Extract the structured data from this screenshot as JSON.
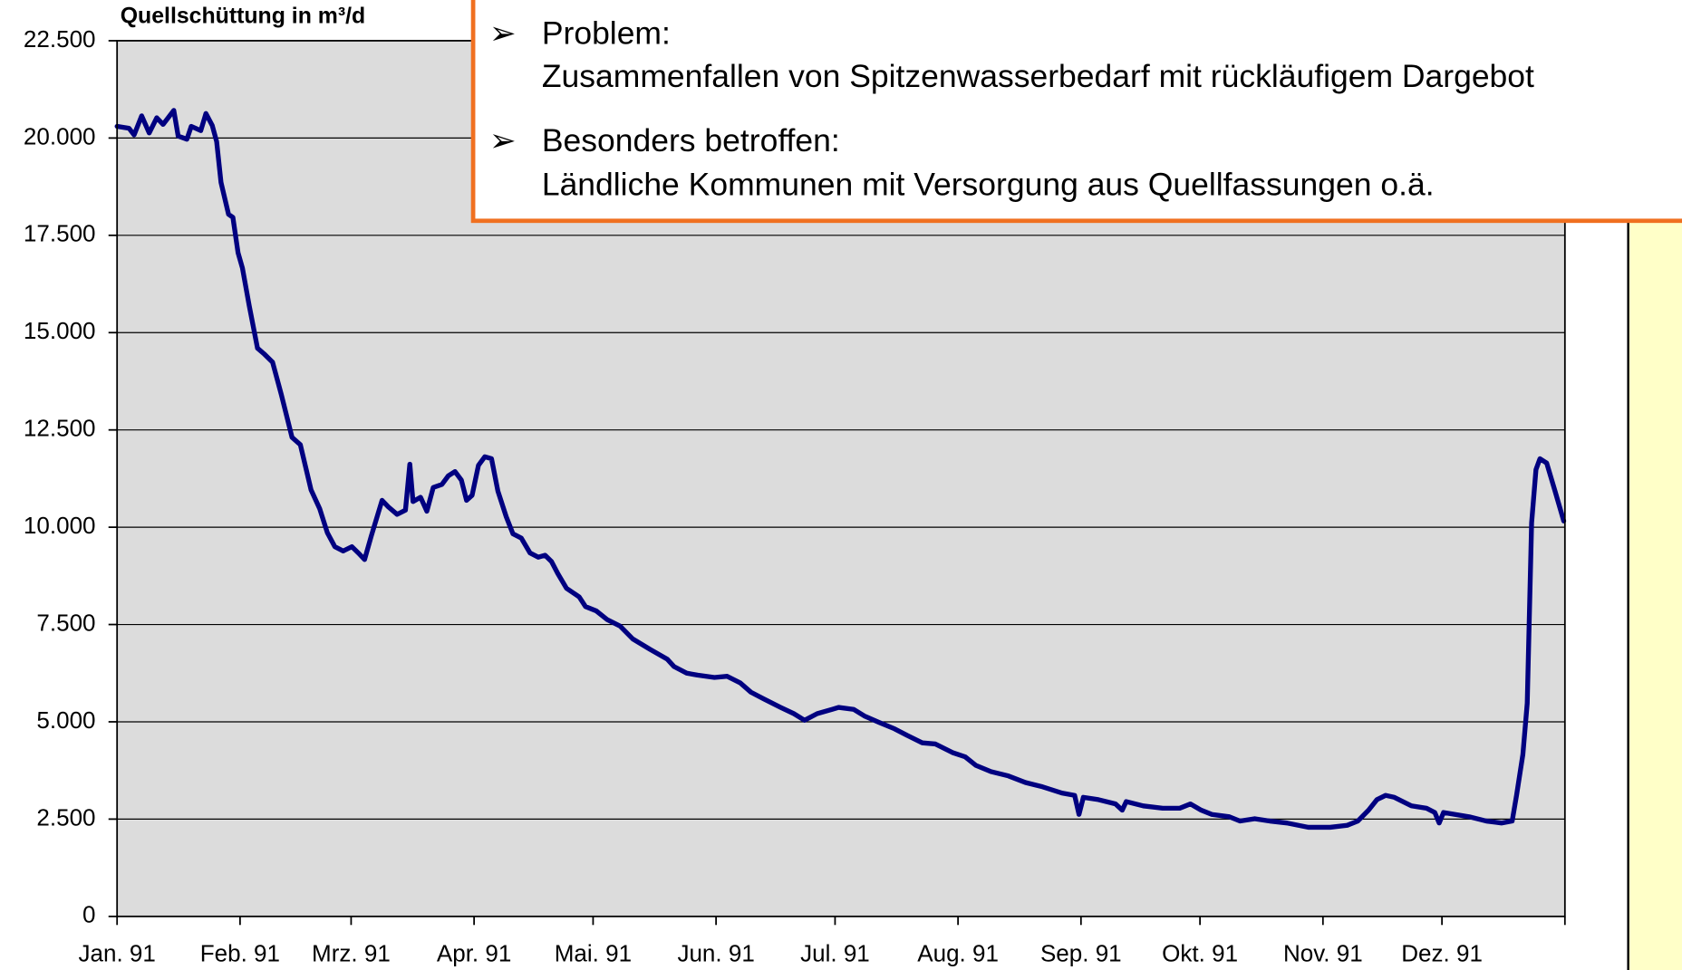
{
  "chart_data": {
    "type": "line",
    "y_label": "Quellschüttung in m³/d",
    "color": "#000080",
    "xlim": [
      0,
      365
    ],
    "xticks": [
      {
        "value": 0,
        "label": "Jan. 91"
      },
      {
        "value": 31,
        "label": "Feb. 91"
      },
      {
        "value": 59,
        "label": "Mrz. 91"
      },
      {
        "value": 90,
        "label": "Apr. 91"
      },
      {
        "value": 120,
        "label": "Mai. 91"
      },
      {
        "value": 151,
        "label": "Jun. 91"
      },
      {
        "value": 181,
        "label": "Jul. 91"
      },
      {
        "value": 212,
        "label": "Aug. 91"
      },
      {
        "value": 243,
        "label": "Sep. 91"
      },
      {
        "value": 273,
        "label": "Okt. 91"
      },
      {
        "value": 304,
        "label": "Nov. 91"
      },
      {
        "value": 334,
        "label": "Dez. 91"
      }
    ],
    "ylim": [
      0,
      22500
    ],
    "yticks": [
      0,
      {
        "value": 2500,
        "label": "2.500"
      },
      {
        "value": 5000,
        "label": "5.000"
      },
      {
        "value": 7500,
        "label": "7.500"
      },
      {
        "value": 10000,
        "label": "10.000"
      },
      {
        "value": 12500,
        "label": "12.500"
      },
      {
        "value": 15000,
        "label": "15.000"
      },
      {
        "value": 17500,
        "label": "17.500"
      },
      {
        "value": 20000,
        "label": "20.000"
      },
      {
        "value": 22500,
        "label": "22.500"
      }
    ],
    "grid": true,
    "x": [
      0,
      3,
      4.3,
      6.2,
      8.1,
      10,
      11.6,
      14.3,
      15.4,
      17.6,
      18.7,
      21.1,
      22.4,
      24,
      25.1,
      26.2,
      28.1,
      29.2,
      30.5,
      31.6,
      33.3,
      35.4,
      37,
      39.2,
      41.4,
      44.1,
      46.2,
      48.9,
      51.1,
      53,
      54.9,
      57,
      59.2,
      60.8,
      62.4,
      64.1,
      66.8,
      68.4,
      70.6,
      72.7,
      73.8,
      74.6,
      76.5,
      78.1,
      79.7,
      81.9,
      83.5,
      85.2,
      86.8,
      88.1,
      89.5,
      91.1,
      92.7,
      94.4,
      96,
      98.1,
      99.8,
      101.9,
      104.1,
      106.2,
      107.9,
      109.5,
      111.1,
      113.3,
      116.5,
      118.1,
      120.8,
      123.5,
      126.8,
      130,
      134.4,
      138.7,
      140.4,
      143.6,
      146.3,
      150.6,
      153.8,
      157.1,
      159.8,
      163,
      167.3,
      170.6,
      173.3,
      176.5,
      180.3,
      181.9,
      185.7,
      188.4,
      192.2,
      196,
      199.2,
      203,
      206.3,
      210.6,
      213.8,
      216.5,
      220.3,
      224.7,
      229,
      233.3,
      238.2,
      241.4,
      242.5,
      243.6,
      247.4,
      251.7,
      253.4,
      254.4,
      258.7,
      263.6,
      267.9,
      270.6,
      273.3,
      276,
      280.4,
      283.1,
      286.8,
      290.6,
      294.9,
      300.3,
      305.8,
      310.1,
      312.8,
      315.5,
      317.6,
      319.8,
      322,
      326.3,
      330.1,
      332.2,
      333.3,
      334.4,
      340.9,
      345.2,
      349,
      351.7,
      352.8,
      354.4,
      355.5,
      356.6,
      357.7,
      358.7,
      360.4,
      362.5,
      364.7
    ],
    "values": [
      20300,
      20250,
      20080,
      20570,
      20130,
      20520,
      20350,
      20710,
      20050,
      19970,
      20300,
      20190,
      20630,
      20320,
      19910,
      18860,
      18040,
      17960,
      17050,
      16660,
      15700,
      14600,
      14460,
      14240,
      13410,
      12310,
      12120,
      10960,
      10470,
      9860,
      9500,
      9390,
      9500,
      9340,
      9170,
      9780,
      10690,
      10520,
      10330,
      10440,
      11620,
      10660,
      10770,
      10410,
      11020,
      11100,
      11320,
      11430,
      11210,
      10690,
      10820,
      11590,
      11810,
      11760,
      10930,
      10270,
      9830,
      9720,
      9340,
      9230,
      9280,
      9120,
      8810,
      8430,
      8210,
      7960,
      7850,
      7630,
      7460,
      7130,
      6860,
      6610,
      6420,
      6250,
      6200,
      6140,
      6170,
      6000,
      5760,
      5590,
      5370,
      5210,
      5040,
      5210,
      5320,
      5370,
      5320,
      5150,
      4980,
      4820,
      4650,
      4460,
      4430,
      4210,
      4100,
      3880,
      3720,
      3610,
      3440,
      3330,
      3170,
      3110,
      2620,
      3060,
      3000,
      2890,
      2730,
      2950,
      2840,
      2780,
      2780,
      2890,
      2730,
      2620,
      2560,
      2450,
      2510,
      2450,
      2400,
      2290,
      2290,
      2340,
      2450,
      2730,
      3000,
      3110,
      3060,
      2840,
      2780,
      2670,
      2400,
      2670,
      2560,
      2450,
      2400,
      2450,
      3110,
      4160,
      5480,
      10110,
      11480,
      11760,
      11650,
      10930,
      10160
    ]
  },
  "callout": {
    "items": [
      {
        "heading": "Problem:",
        "text": "Zusammenfallen von Spitzenwasserbedarf mit rückläufigem Dargebot"
      },
      {
        "heading": "Besonders betroffen:",
        "text": "Ländliche Kommunen mit Versorgung aus Quellfassungen o.ä."
      }
    ]
  }
}
